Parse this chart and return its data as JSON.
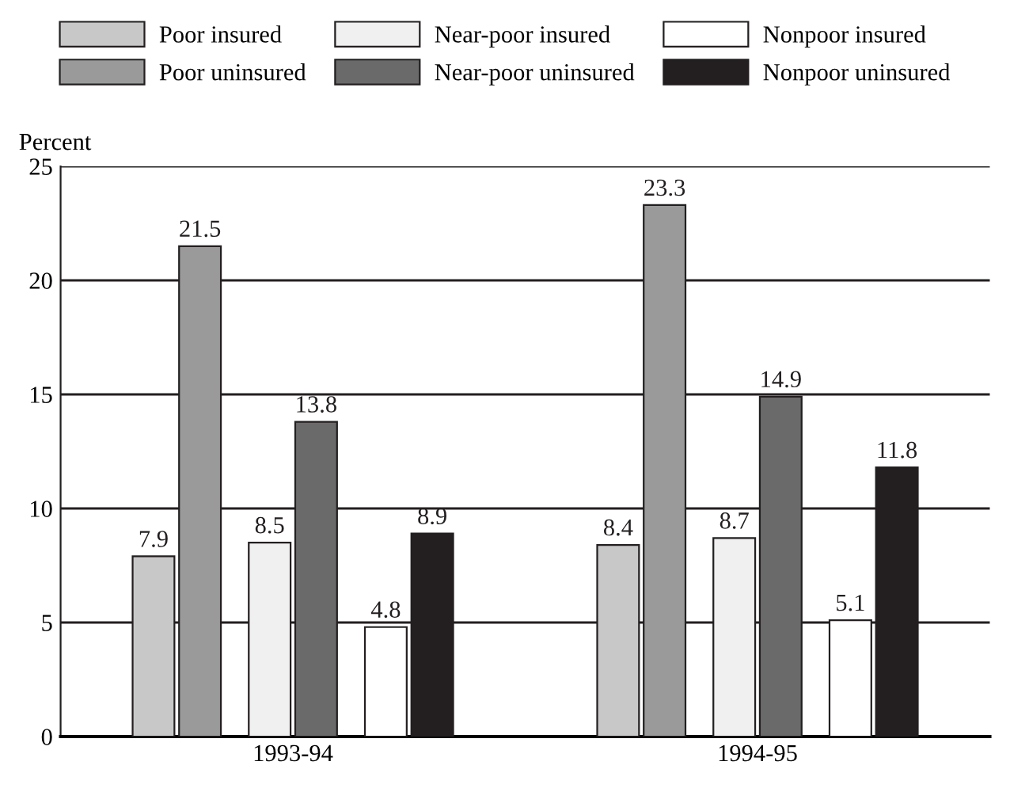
{
  "chart_data": {
    "type": "bar",
    "ylabel": "Percent",
    "categories": [
      "1993-94",
      "1994-95"
    ],
    "series": [
      {
        "name": "Poor insured",
        "color": "#c8c8c8",
        "values": [
          7.9,
          8.4
        ]
      },
      {
        "name": "Poor uninsured",
        "color": "#9a9a9a",
        "values": [
          21.5,
          23.3
        ]
      },
      {
        "name": "Near-poor insured",
        "color": "#f0f0f0",
        "values": [
          8.5,
          8.7
        ]
      },
      {
        "name": "Near-poor uninsured",
        "color": "#6a6a6a",
        "values": [
          13.8,
          14.9
        ]
      },
      {
        "name": "Nonpoor insured",
        "color": "#ffffff",
        "values": [
          4.8,
          5.1
        ]
      },
      {
        "name": "Nonpoor uninsured",
        "color": "#231f20",
        "values": [
          8.9,
          11.8
        ]
      }
    ],
    "ylim": [
      0,
      25
    ],
    "yticks": [
      0,
      5,
      10,
      15,
      20,
      25
    ],
    "grid": "y",
    "legend": "top",
    "data_labels": true
  }
}
